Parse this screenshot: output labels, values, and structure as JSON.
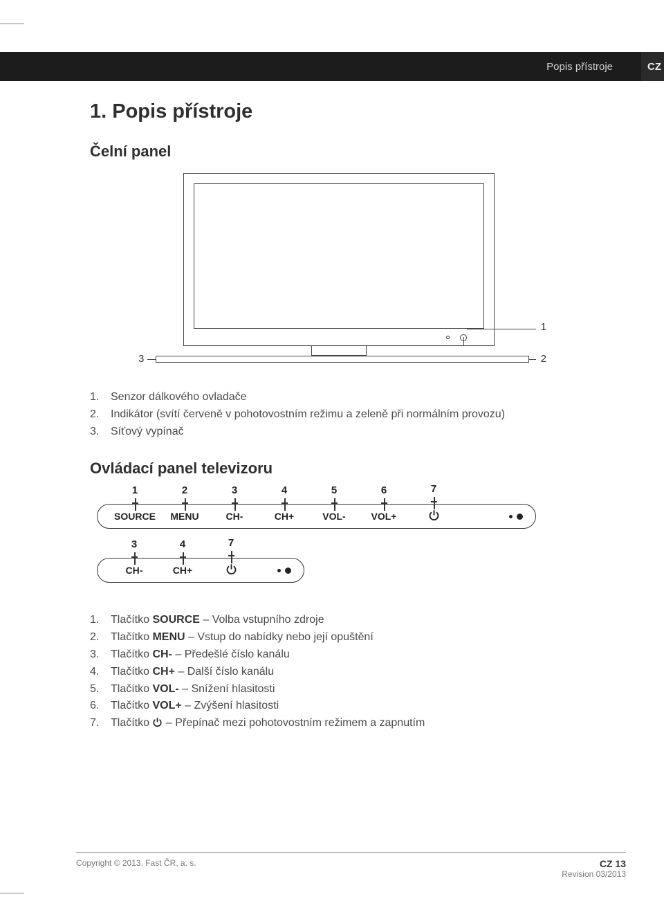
{
  "header": {
    "section_label": "Popis přístroje",
    "lang_code": "CZ"
  },
  "title": "1.  Popis přístroje",
  "section_a": {
    "heading": "Čelní panel",
    "callouts": {
      "c1": "1",
      "c2": "2",
      "c3": "3"
    },
    "list": [
      {
        "n": "1.",
        "text": "Senzor dálkového ovladače"
      },
      {
        "n": "2.",
        "text": "Indikátor (svítí červeně v pohotovostním režimu a zeleně při normálním provozu)"
      },
      {
        "n": "3.",
        "text": "Síťový vypínač"
      }
    ]
  },
  "section_b": {
    "heading": "Ovládací panel televizoru",
    "panel_big": [
      {
        "num": "1",
        "label": "SOURCE"
      },
      {
        "num": "2",
        "label": "MENU"
      },
      {
        "num": "3",
        "label": "CH-"
      },
      {
        "num": "4",
        "label": "CH+"
      },
      {
        "num": "5",
        "label": "VOL-"
      },
      {
        "num": "6",
        "label": "VOL+"
      },
      {
        "num": "7",
        "label": "PWR"
      }
    ],
    "panel_small": [
      {
        "num": "3",
        "label": "CH-"
      },
      {
        "num": "4",
        "label": "CH+"
      },
      {
        "num": "7",
        "label": "PWR"
      }
    ],
    "list": [
      {
        "n": "1.",
        "pre": "Tlačítko ",
        "bold": "SOURCE",
        "post": " – Volba vstupního zdroje"
      },
      {
        "n": "2.",
        "pre": "Tlačítko ",
        "bold": "MENU",
        "post": " – Vstup do nabídky nebo její opuštění"
      },
      {
        "n": "3.",
        "pre": "Tlačítko ",
        "bold": "CH-",
        "post": " – Předešlé číslo kanálu"
      },
      {
        "n": "4.",
        "pre": "Tlačítko ",
        "bold": "CH+",
        "post": " – Další číslo kanálu"
      },
      {
        "n": "5.",
        "pre": "Tlačítko ",
        "bold": "VOL-",
        "post": " – Snížení hlasitosti"
      },
      {
        "n": "6.",
        "pre": "Tlačítko ",
        "bold": "VOL+",
        "post": " – Zvýšení hlasitosti"
      },
      {
        "n": "7.",
        "pre": "Tlačítko ",
        "bold": "PWRICON",
        "post": " – Přepínač mezi pohotovostním režimem a zapnutím"
      }
    ]
  },
  "footer": {
    "copyright": "Copyright © 2013, Fast ČR, a. s.",
    "page": "CZ 13",
    "revision": "Revision 03/2013"
  },
  "colors": {
    "header_bg": "#1c1c1c",
    "text": "#3a3a3a",
    "line": "#444444"
  }
}
